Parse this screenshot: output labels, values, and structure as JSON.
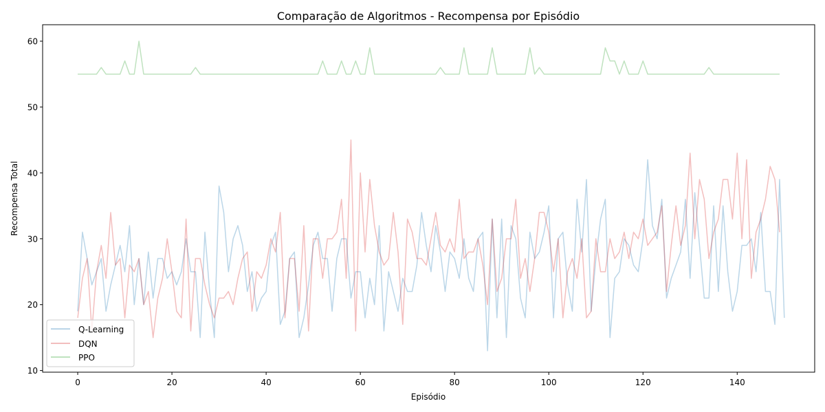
{
  "chart_data": {
    "type": "line",
    "title": "Comparação de Algoritmos - Recompensa por Episódio",
    "xlabel": "Episódio",
    "ylabel": "Recompensa Total",
    "xlim": [
      -7.45,
      156.45
    ],
    "ylim": [
      9.75,
      62.5
    ],
    "xticks": [
      0,
      20,
      40,
      60,
      80,
      100,
      120,
      140
    ],
    "yticks": [
      10,
      20,
      30,
      40,
      50,
      60
    ],
    "grid": false,
    "legend_position": "lower-left",
    "series": [
      {
        "name": "Q-Learning",
        "color": "#1f77b4",
        "values": [
          19,
          31,
          27,
          23,
          25,
          27,
          19,
          23,
          26,
          29,
          25,
          32,
          20,
          27,
          20,
          28,
          21,
          27,
          27,
          24,
          25,
          23,
          25,
          30,
          25,
          25,
          15,
          31,
          22,
          15,
          38,
          34,
          25,
          30,
          32,
          29,
          22,
          25,
          19,
          21,
          22,
          29,
          31,
          17,
          19,
          27,
          28,
          15,
          18,
          23,
          29,
          31,
          27,
          27,
          19,
          27,
          30,
          30,
          21,
          25,
          25,
          18,
          24,
          20,
          32,
          16,
          25,
          22,
          19,
          24,
          22,
          22,
          26,
          34,
          29,
          25,
          32,
          28,
          22,
          28,
          27,
          24,
          30,
          24,
          22,
          30,
          31,
          13,
          33,
          18,
          33,
          15,
          32,
          30,
          21,
          18,
          31,
          27,
          28,
          31,
          35,
          18,
          30,
          31,
          23,
          19,
          36,
          28,
          39,
          19,
          27,
          33,
          36,
          15,
          24,
          25,
          30,
          29,
          26,
          25,
          30,
          42,
          32,
          30,
          36,
          21,
          24,
          26,
          28,
          36,
          24,
          37,
          29,
          21,
          21,
          35,
          22,
          35,
          25,
          19,
          22,
          29,
          29,
          30,
          25,
          34,
          22,
          22,
          17,
          39,
          18
        ]
      },
      {
        "name": "DQN",
        "color": "#d62728",
        "values": [
          18,
          24,
          27,
          16,
          25,
          29,
          24,
          34,
          26,
          27,
          18,
          26,
          25,
          27,
          20,
          22,
          15,
          21,
          24,
          30,
          25,
          19,
          18,
          33,
          16,
          27,
          27,
          23,
          20,
          18,
          21,
          21,
          22,
          20,
          24,
          27,
          28,
          19,
          25,
          24,
          26,
          30,
          28,
          34,
          18,
          27,
          27,
          19,
          32,
          16,
          30,
          30,
          24,
          30,
          30,
          31,
          36,
          24,
          45,
          16,
          40,
          28,
          39,
          32,
          28,
          26,
          27,
          34,
          28,
          17,
          33,
          31,
          27,
          27,
          26,
          30,
          34,
          29,
          28,
          30,
          28,
          36,
          27,
          28,
          28,
          30,
          26,
          20,
          33,
          22,
          24,
          30,
          30,
          36,
          24,
          27,
          22,
          27,
          34,
          34,
          31,
          25,
          30,
          18,
          25,
          27,
          24,
          30,
          18,
          19,
          30,
          25,
          25,
          30,
          27,
          28,
          31,
          27,
          31,
          30,
          33,
          29,
          30,
          31,
          35,
          22,
          29,
          35,
          29,
          32,
          43,
          30,
          39,
          36,
          27,
          31,
          33,
          39,
          39,
          33,
          43,
          30,
          42,
          24,
          31,
          33,
          36,
          41,
          39,
          31
        ]
      },
      {
        "name": "PPO",
        "color": "#2ca02c",
        "values": [
          55,
          55,
          55,
          55,
          55,
          56,
          55,
          55,
          55,
          55,
          57,
          55,
          55,
          60,
          55,
          55,
          55,
          55,
          55,
          55,
          55,
          55,
          55,
          55,
          55,
          56,
          55,
          55,
          55,
          55,
          55,
          55,
          55,
          55,
          55,
          55,
          55,
          55,
          55,
          55,
          55,
          55,
          55,
          55,
          55,
          55,
          55,
          55,
          55,
          55,
          55,
          55,
          57,
          55,
          55,
          55,
          57,
          55,
          55,
          57,
          55,
          55,
          59,
          55,
          55,
          55,
          55,
          55,
          55,
          55,
          55,
          55,
          55,
          55,
          55,
          55,
          55,
          56,
          55,
          55,
          55,
          55,
          59,
          55,
          55,
          55,
          55,
          55,
          59,
          55,
          55,
          55,
          55,
          55,
          55,
          55,
          59,
          55,
          56,
          55,
          55,
          55,
          55,
          55,
          55,
          55,
          55,
          55,
          55,
          55,
          55,
          55,
          59,
          57,
          57,
          55,
          57,
          55,
          55,
          55,
          57,
          55,
          55,
          55,
          55,
          55,
          55,
          55,
          55,
          55,
          55,
          55,
          55,
          55,
          56,
          55,
          55,
          55,
          55,
          55,
          55,
          55,
          55,
          55,
          55,
          55,
          55,
          55,
          55,
          55
        ]
      }
    ]
  }
}
